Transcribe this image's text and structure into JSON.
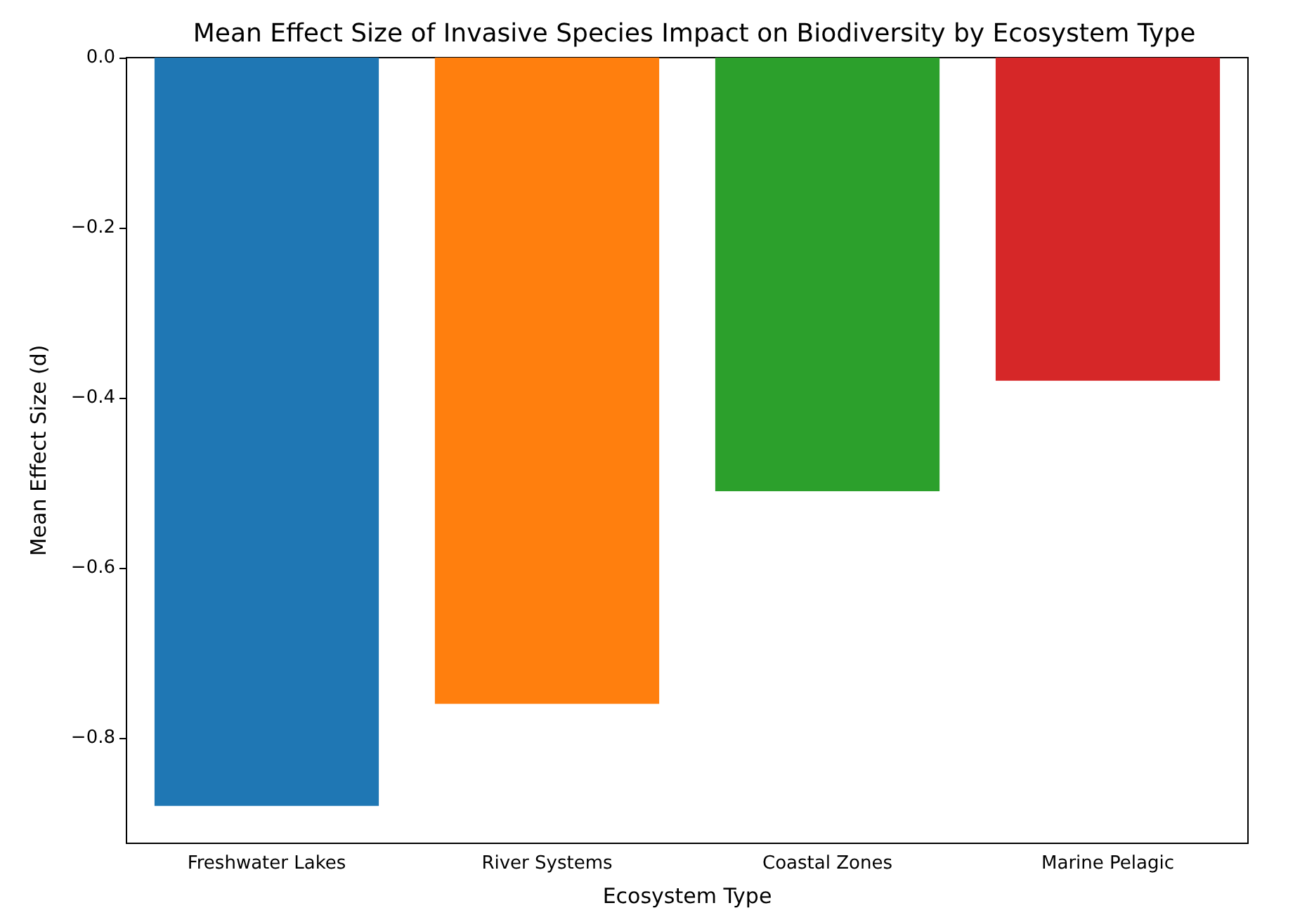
{
  "chart_data": {
    "type": "bar",
    "title": "Mean Effect Size of Invasive Species Impact on Biodiversity by Ecosystem Type",
    "xlabel": "Ecosystem Type",
    "ylabel": "Mean Effect Size (d)",
    "categories": [
      "Freshwater Lakes",
      "River Systems",
      "Coastal Zones",
      "Marine Pelagic"
    ],
    "values": [
      -0.88,
      -0.76,
      -0.51,
      -0.38
    ],
    "colors": [
      "#1f77b4",
      "#ff7f0e",
      "#2ca02c",
      "#d62728"
    ],
    "ylim": [
      -0.924,
      0
    ],
    "yticks": [
      {
        "value": 0,
        "label": "0.0"
      },
      {
        "value": -0.2,
        "label": "−0.2"
      },
      {
        "value": -0.4,
        "label": "−0.4"
      },
      {
        "value": -0.6,
        "label": "−0.6"
      },
      {
        "value": -0.8,
        "label": "−0.8"
      }
    ],
    "grid": false
  }
}
